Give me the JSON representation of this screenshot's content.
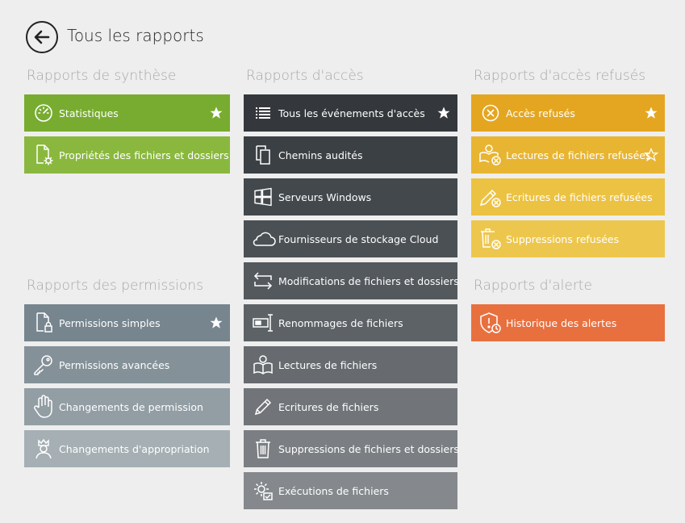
{
  "header": {
    "title": "Tous les rapports"
  },
  "sections": {
    "synthese": "Rapports de synthèse",
    "acces": "Rapports d'accès",
    "refuses": "Rapports d'accès refusés",
    "permissions": "Rapports des permissions",
    "alerte": "Rapports d'alerte"
  },
  "synthese": [
    {
      "label": "Statistiques",
      "icon": "gauge-icon",
      "favorite": true,
      "color": "#78ac30"
    },
    {
      "label": "Propriétés des fichiers et dossiers",
      "icon": "file-gear-icon",
      "favorite": false,
      "color": "#8ab83e"
    }
  ],
  "acces": [
    {
      "label": "Tous les événements d'accès",
      "icon": "list-icon",
      "favorite": true,
      "color": "#34383c"
    },
    {
      "label": "Chemins audités",
      "icon": "copy-icon",
      "color": "#3b4044"
    },
    {
      "label": "Serveurs Windows",
      "icon": "windows-icon",
      "color": "#43484c"
    },
    {
      "label": "Fournisseurs de stockage Cloud",
      "icon": "cloud-icon",
      "color": "#4b5054"
    },
    {
      "label": "Modifications de fichiers et dossiers",
      "icon": "swap-icon",
      "color": "#54595d"
    },
    {
      "label": "Renommages de fichiers",
      "icon": "rename-icon",
      "color": "#5d6266"
    },
    {
      "label": "Lectures de fichiers",
      "icon": "book-icon",
      "color": "#676b6f"
    },
    {
      "label": "Ecritures de fichiers",
      "icon": "pencil-icon",
      "color": "#717579"
    },
    {
      "label": "Suppressions de fichiers et dossiers",
      "icon": "trash-icon",
      "color": "#7b7f83"
    },
    {
      "label": "Exécutions de fichiers",
      "icon": "gear-check-icon",
      "color": "#85898d"
    }
  ],
  "refuses": [
    {
      "label": "Accès refusés",
      "icon": "circle-x-icon",
      "favorite": true,
      "color": "#e4a621"
    },
    {
      "label": "Lectures de fichiers refusées",
      "icon": "book-x-icon",
      "favorite_outline": true,
      "color": "#e8b532"
    },
    {
      "label": "Ecritures de fichiers refusées",
      "icon": "pencil-x-icon",
      "color": "#ecc243"
    },
    {
      "label": "Suppressions refusées",
      "icon": "trash-x-icon",
      "color": "#edc74d"
    }
  ],
  "alerte": [
    {
      "label": "Historique des alertes",
      "icon": "shield-alert-icon",
      "color": "#e8703f"
    }
  ],
  "permissions": [
    {
      "label": "Permissions simples",
      "icon": "file-lock-icon",
      "favorite": true,
      "color": "#76858e"
    },
    {
      "label": "Permissions avancées",
      "icon": "key-icon",
      "color": "#849198"
    },
    {
      "label": "Changements de permission",
      "icon": "hand-icon",
      "color": "#929ea4"
    },
    {
      "label": "Changements d'appropriation",
      "icon": "person-crown-icon",
      "color": "#a5afb4"
    }
  ]
}
